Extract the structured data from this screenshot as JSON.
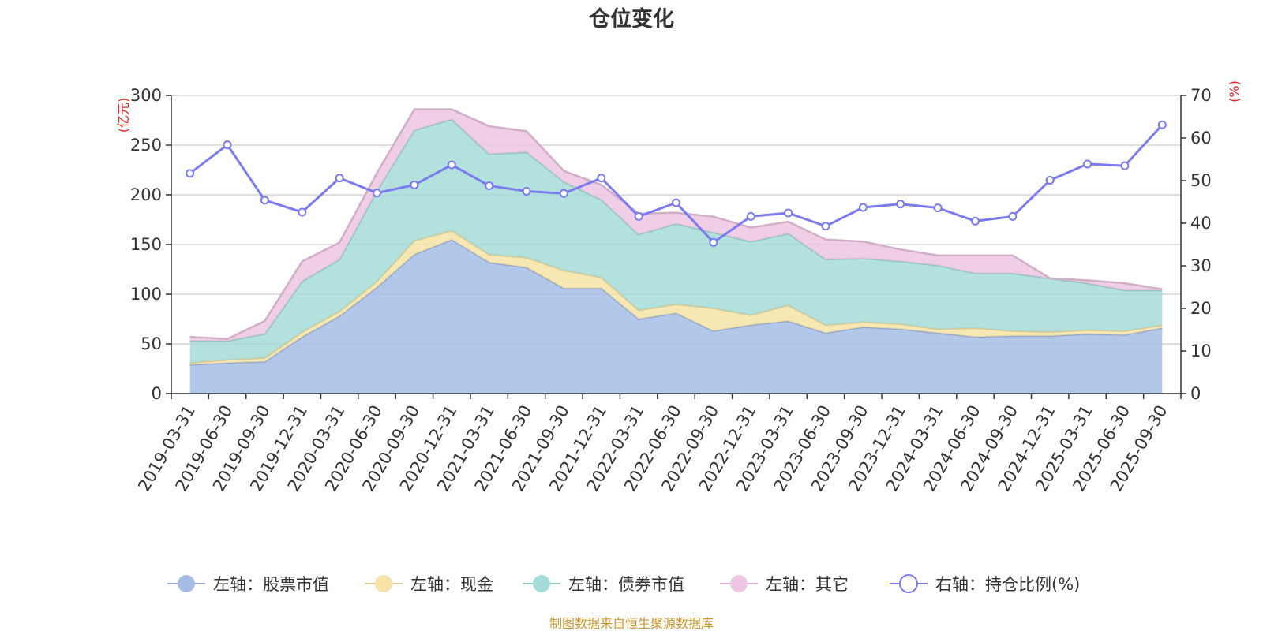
{
  "chart_data": {
    "type": "area",
    "title": "仓位变化",
    "left_axis": {
      "label": "(亿元)",
      "ylim": [
        0,
        300
      ],
      "ticks": [
        "0",
        "50",
        "100",
        "150",
        "200",
        "250",
        "300"
      ]
    },
    "right_axis": {
      "label": "(%)",
      "ylim": [
        0,
        70
      ],
      "ticks": [
        "0",
        "10",
        "20",
        "30",
        "40",
        "50",
        "60",
        "70"
      ]
    },
    "grid": true,
    "categories": [
      "2019-03-31",
      "2019-06-30",
      "2019-09-30",
      "2019-12-31",
      "2020-03-31",
      "2020-06-30",
      "2020-09-30",
      "2020-12-31",
      "2021-03-31",
      "2021-06-30",
      "2021-09-30",
      "2021-12-31",
      "2022-03-31",
      "2022-06-30",
      "2022-09-30",
      "2022-12-31",
      "2023-03-31",
      "2023-06-30",
      "2023-09-30",
      "2023-12-31",
      "2024-03-31",
      "2024-06-30",
      "2024-09-30",
      "2024-12-31",
      "2025-03-31",
      "2025-06-30",
      "2025-09-30"
    ],
    "series": [
      {
        "name": "左轴：股票市值",
        "axis": "left",
        "type": "area",
        "stacked": true,
        "color": "#a5bde5",
        "values": [
          29,
          31,
          32,
          57,
          78,
          107,
          140,
          155,
          132,
          127,
          106,
          106,
          75,
          81,
          63,
          69,
          73,
          61,
          67,
          65,
          61,
          57,
          58,
          58,
          60,
          59,
          66
        ]
      },
      {
        "name": "左轴：现金",
        "axis": "left",
        "type": "area",
        "stacked": true,
        "color": "#f6e3a5",
        "values": [
          2,
          3,
          4,
          5,
          5,
          6,
          14,
          9,
          8,
          10,
          18,
          11,
          9,
          9,
          23,
          10,
          16,
          8,
          5,
          5,
          4,
          9,
          5,
          4,
          4,
          4,
          3
        ]
      },
      {
        "name": "左轴：债券市值",
        "axis": "left",
        "type": "area",
        "stacked": true,
        "color": "#a6dcd8",
        "values": [
          22,
          19,
          24,
          51,
          52,
          91,
          111,
          112,
          101,
          106,
          89,
          78,
          76,
          81,
          76,
          74,
          72,
          66,
          64,
          63,
          64,
          55,
          58,
          54,
          47,
          41,
          35
        ]
      },
      {
        "name": "左轴：其它",
        "axis": "left",
        "type": "area",
        "stacked": true,
        "color": "#ecc6e2",
        "values": [
          4,
          2,
          13,
          20,
          17,
          18,
          21,
          10,
          28,
          21,
          11,
          15,
          21,
          11,
          16,
          14,
          12,
          20,
          17,
          12,
          10,
          18,
          18,
          0,
          3,
          7,
          1
        ]
      },
      {
        "name": "右轴：持仓比例(%)",
        "axis": "right",
        "type": "line",
        "color": "#7b7bef",
        "values": [
          51.7,
          58.4,
          45.4,
          42.6,
          50.6,
          47.1,
          49.0,
          53.7,
          48.8,
          47.5,
          47.0,
          50.6,
          41.6,
          44.8,
          35.5,
          41.6,
          42.4,
          39.3,
          43.7,
          44.5,
          43.6,
          40.5,
          41.6,
          50.1,
          53.9,
          53.5,
          63.1
        ]
      }
    ]
  },
  "source_note": "制图数据来自恒生聚源数据库"
}
